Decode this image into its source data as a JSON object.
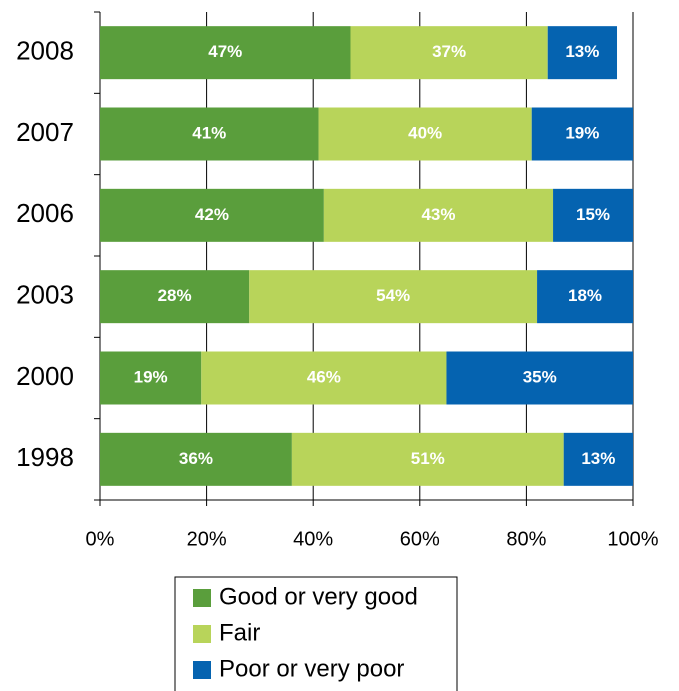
{
  "chart_data": {
    "type": "stacked-barh",
    "categories": [
      "2008",
      "2007",
      "2006",
      "2003",
      "2000",
      "1998"
    ],
    "series": [
      {
        "name": "Good or very good",
        "color": "#5a9e3c",
        "values": [
          47,
          41,
          42,
          28,
          19,
          36
        ],
        "value_labels": [
          "47%",
          "41%",
          "42%",
          "28%",
          "19%",
          "36%"
        ]
      },
      {
        "name": "Fair",
        "color": "#b8d45a",
        "values": [
          37,
          40,
          43,
          54,
          46,
          51
        ],
        "value_labels": [
          "37%",
          "40%",
          "43%",
          "54%",
          "46%",
          "51%"
        ]
      },
      {
        "name": "Poor or very poor",
        "color": "#0563b0",
        "values": [
          13,
          19,
          15,
          18,
          35,
          13
        ],
        "value_labels": [
          "13%",
          "19%",
          "15%",
          "18%",
          "35%",
          "13%"
        ]
      }
    ],
    "xlim": [
      0,
      100
    ],
    "xticks": [
      {
        "value": 0,
        "label": "0%"
      },
      {
        "value": 20,
        "label": "20%"
      },
      {
        "value": 40,
        "label": "40%"
      },
      {
        "value": 60,
        "label": "60%"
      },
      {
        "value": 80,
        "label": "80%"
      },
      {
        "value": 100,
        "label": "100%"
      }
    ],
    "grid": true,
    "legend": "bottom"
  }
}
